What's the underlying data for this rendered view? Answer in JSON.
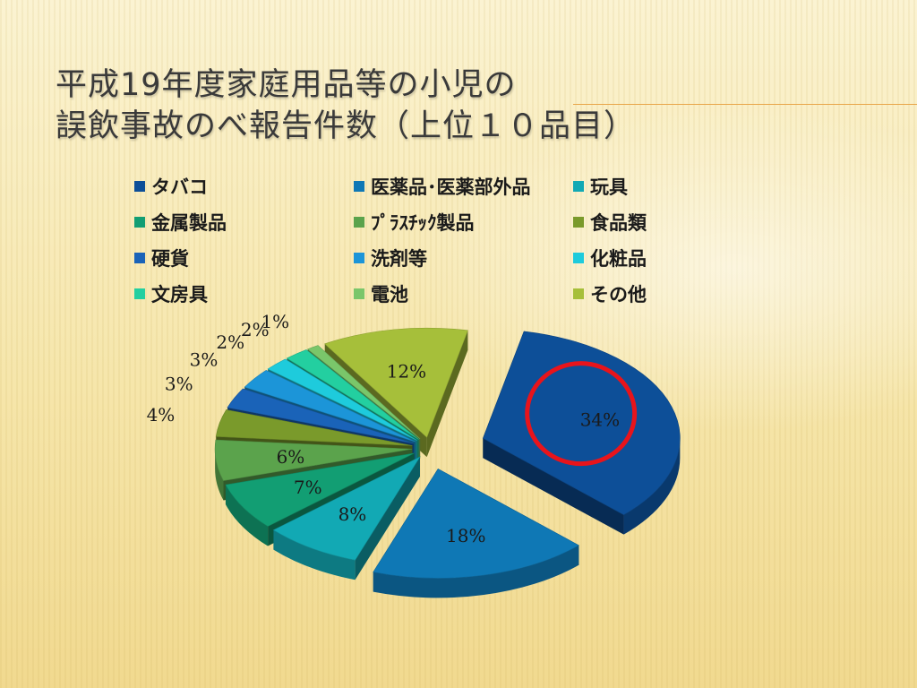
{
  "slide": {
    "title_lines": [
      "平成19年度家庭用品等の小児の",
      "誤飲事故のべ報告件数（上位１０品目）"
    ]
  },
  "chart_data": {
    "type": "pie",
    "style": "3d-exploded",
    "legend_placement": "top",
    "highlight": {
      "category": "タバコ",
      "shape": "circle",
      "color": "#e8141b"
    },
    "series": [
      {
        "category": "タバコ",
        "value": 34,
        "label": "34%",
        "color": "#0d4f98"
      },
      {
        "category": "医薬品･医薬部外品",
        "value": 18,
        "label": "18%",
        "color": "#0f78b5"
      },
      {
        "category": "玩具",
        "value": 8,
        "label": "8%",
        "color": "#12a9b4"
      },
      {
        "category": "金属製品",
        "value": 7,
        "label": "7%",
        "color": "#129e73"
      },
      {
        "category": "ﾌﾟﾗｽﾁｯｸ製品",
        "value": 6,
        "label": "6%",
        "color": "#5ba34c"
      },
      {
        "category": "食品類",
        "value": 4,
        "label": "4%",
        "color": "#7a9a2b"
      },
      {
        "category": "硬貨",
        "value": 3,
        "label": "3%",
        "color": "#1a63b8"
      },
      {
        "category": "洗剤等",
        "value": 3,
        "label": "3%",
        "color": "#1c95d8"
      },
      {
        "category": "化粧品",
        "value": 2,
        "label": "2%",
        "color": "#1ecbdc"
      },
      {
        "category": "文房具",
        "value": 2,
        "label": "2%",
        "color": "#23cfa0"
      },
      {
        "category": "電池",
        "value": 1,
        "label": "1%",
        "color": "#7ac66a"
      },
      {
        "category": "その他",
        "value": 12,
        "label": "12%",
        "color": "#a6bf3a"
      }
    ]
  }
}
